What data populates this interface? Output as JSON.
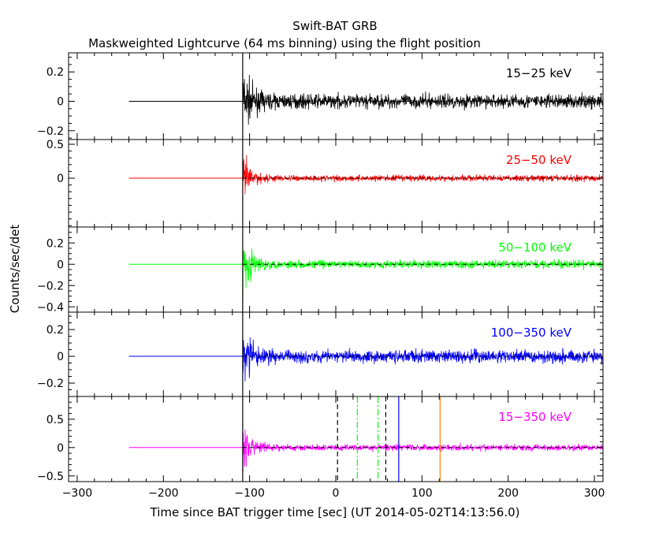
{
  "chart_data": {
    "type": "line",
    "title": "Swift-BAT GRB",
    "subtitle": "Maskweighted Lightcurve (64 ms binning) using the flight position",
    "xlabel": "Time since BAT trigger time [sec] (UT 2014-05-02T14:13:56.0)",
    "ylabel": "Counts/sec/det",
    "xlim": [
      -310,
      310
    ],
    "x_ticks": [
      -300,
      -200,
      -100,
      0,
      100,
      200,
      300
    ],
    "data_start": -240,
    "burst_onset": -108,
    "panels": [
      {
        "name": "15−25 keV",
        "color": "#000000",
        "ylim": [
          -0.26,
          0.33
        ],
        "yticks": [
          -0.2,
          0,
          0.2
        ],
        "ytick_labels": [
          "−0.2",
          "0",
          "0.2"
        ],
        "spike_amplitude": 0.22,
        "noise_amplitude": 0.05
      },
      {
        "name": "25−50 keV",
        "color": "#ff0000",
        "ylim": [
          -0.72,
          0.57
        ],
        "yticks": [
          0,
          0.5
        ],
        "ytick_labels": [
          "0",
          "0.5"
        ],
        "spike_amplitude": 0.38,
        "noise_amplitude": 0.05
      },
      {
        "name": "50−100 keV",
        "color": "#00ff00",
        "ylim": [
          -0.45,
          0.35
        ],
        "yticks": [
          -0.4,
          -0.2,
          0,
          0.2
        ],
        "ytick_labels": [
          "−0.4",
          "−0.2",
          "0",
          "0.2"
        ],
        "spike_amplitude": 0.3,
        "noise_amplitude": 0.04
      },
      {
        "name": "100−350 keV",
        "color": "#0000ff",
        "ylim": [
          -0.3,
          0.33
        ],
        "yticks": [
          -0.2,
          0,
          0.2
        ],
        "ytick_labels": [
          "−0.2",
          "0",
          "0.2"
        ],
        "spike_amplitude": 0.24,
        "noise_amplitude": 0.05
      },
      {
        "name": "15−350 keV",
        "color": "#ff00ff",
        "ylim": [
          -0.6,
          0.9
        ],
        "yticks": [
          -0.5,
          0,
          0.5
        ],
        "ytick_labels": [
          "−0.5",
          "0",
          "0.5"
        ],
        "spike_amplitude": 0.5,
        "noise_amplitude": 0.06
      }
    ],
    "vertical_lines": [
      {
        "x": -108,
        "color": "#000000",
        "style": "solid",
        "panels": "all"
      },
      {
        "x": 2,
        "color": "#000000",
        "style": "dashed",
        "panels": "last"
      },
      {
        "x": 58,
        "color": "#000000",
        "style": "dashed",
        "panels": "last"
      },
      {
        "x": 25,
        "color": "#00ff00",
        "style": "dashdot",
        "panels": "last"
      },
      {
        "x": 49,
        "color": "#00ff00",
        "style": "dashdot",
        "panels": "last"
      },
      {
        "x": 73,
        "color": "#0000ff",
        "style": "solid",
        "panels": "last"
      },
      {
        "x": 121,
        "color": "#ff8000",
        "style": "solid",
        "panels": "last"
      }
    ]
  }
}
